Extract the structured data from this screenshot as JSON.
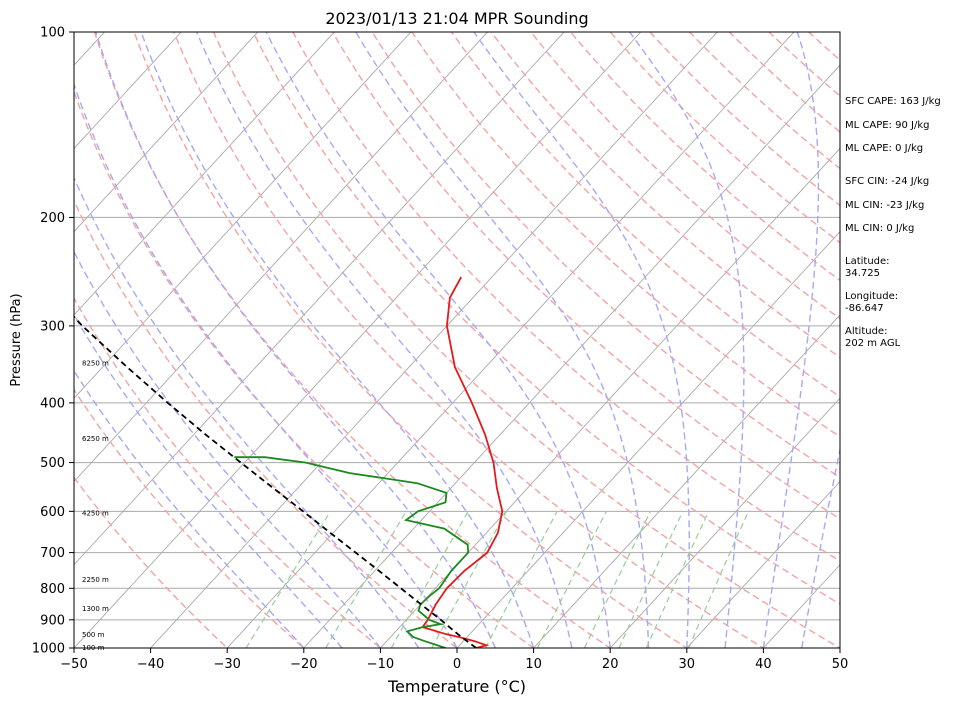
{
  "chart_data": {
    "type": "skew-t",
    "title": "2023/01/13 21:04 MPR Sounding",
    "xlabel": "Temperature (°C)",
    "ylabel": "Pressure (hPa)",
    "xlim": [
      -50,
      50
    ],
    "ylim": [
      1000,
      100
    ],
    "y_scale": "log",
    "x_ticks": [
      -50,
      -40,
      -30,
      -20,
      -10,
      0,
      10,
      20,
      30,
      40,
      50
    ],
    "y_ticks": [
      100,
      200,
      300,
      400,
      500,
      600,
      700,
      800,
      900,
      1000
    ],
    "grid": true,
    "series": [
      {
        "role": "temperature",
        "color": "#e31a1c",
        "points": [
          [
            1000,
            2.5
          ],
          [
            990,
            3.5
          ],
          [
            975,
            1.5
          ],
          [
            960,
            -1
          ],
          [
            950,
            -3
          ],
          [
            925,
            -7
          ],
          [
            900,
            -7.2
          ],
          [
            850,
            -8
          ],
          [
            800,
            -8.5
          ],
          [
            750,
            -8.3
          ],
          [
            700,
            -7.5
          ],
          [
            650,
            -8.5
          ],
          [
            600,
            -10.5
          ],
          [
            550,
            -14
          ],
          [
            500,
            -17.5
          ],
          [
            450,
            -22
          ],
          [
            400,
            -27.5
          ],
          [
            350,
            -34
          ],
          [
            300,
            -40
          ],
          [
            270,
            -43
          ],
          [
            250,
            -44
          ]
        ]
      },
      {
        "role": "dewpoint",
        "color": "#1a8a1a",
        "points": [
          [
            1000,
            -1.5
          ],
          [
            975,
            -5
          ],
          [
            960,
            -7
          ],
          [
            940,
            -8.5
          ],
          [
            925,
            -7
          ],
          [
            915,
            -5
          ],
          [
            900,
            -7
          ],
          [
            870,
            -9.5
          ],
          [
            850,
            -10
          ],
          [
            820,
            -9.8
          ],
          [
            800,
            -9.5
          ],
          [
            750,
            -10
          ],
          [
            700,
            -10
          ],
          [
            680,
            -11
          ],
          [
            640,
            -16
          ],
          [
            620,
            -22
          ],
          [
            600,
            -21.5
          ],
          [
            580,
            -19
          ],
          [
            560,
            -20
          ],
          [
            540,
            -25
          ],
          [
            520,
            -35
          ],
          [
            500,
            -42
          ],
          [
            490,
            -48
          ],
          [
            490,
            -52
          ]
        ]
      },
      {
        "role": "parcel",
        "color": "#000000",
        "points": [
          [
            1000,
            2.5
          ],
          [
            975,
            0.5
          ],
          [
            950,
            -1.5
          ],
          [
            925,
            -3.5
          ],
          [
            900,
            -5.5
          ],
          [
            850,
            -9.9
          ],
          [
            800,
            -14.5
          ],
          [
            750,
            -19.4
          ],
          [
            700,
            -24.7
          ],
          [
            650,
            -30.4
          ],
          [
            600,
            -36.5
          ],
          [
            550,
            -43.2
          ],
          [
            500,
            -50.5
          ],
          [
            450,
            -58.5
          ],
          [
            400,
            -67.2
          ],
          [
            350,
            -76.8
          ],
          [
            300,
            -87.6
          ],
          [
            280,
            -92
          ]
        ]
      }
    ],
    "height_labels": [
      {
        "text": "100 m",
        "pressure": 1000
      },
      {
        "text": "500 m",
        "pressure": 952
      },
      {
        "text": "1300 m",
        "pressure": 865
      },
      {
        "text": "2250 m",
        "pressure": 775
      },
      {
        "text": "4250 m",
        "pressure": 605
      },
      {
        "text": "6250 m",
        "pressure": 458
      },
      {
        "text": "8250 m",
        "pressure": 345
      }
    ]
  },
  "side_panel": {
    "sfc_cape": "SFC CAPE: 163 J/kg",
    "ml_cape_1": "ML CAPE: 90 J/kg",
    "ml_cape_2": "ML CAPE: 0 J/kg",
    "sfc_cin": "SFC CIN: -24 J/kg",
    "ml_cin_1": "ML CIN: -23 J/kg",
    "ml_cin_2": "ML CIN: 0 J/kg",
    "latitude_label": "Latitude:",
    "latitude_value": "34.725",
    "longitude_label": "Longitude:",
    "longitude_value": "-86.647",
    "altitude_label": "Altitude:",
    "altitude_value": "202 m AGL"
  },
  "colors": {
    "dry_adiabat": "#f4a3a3",
    "moist_adiabat": "#a8a8f5",
    "mixing_ratio": "#96cf96",
    "isotherm": "#aaaaaa",
    "isobar": "#aaaaaa"
  }
}
